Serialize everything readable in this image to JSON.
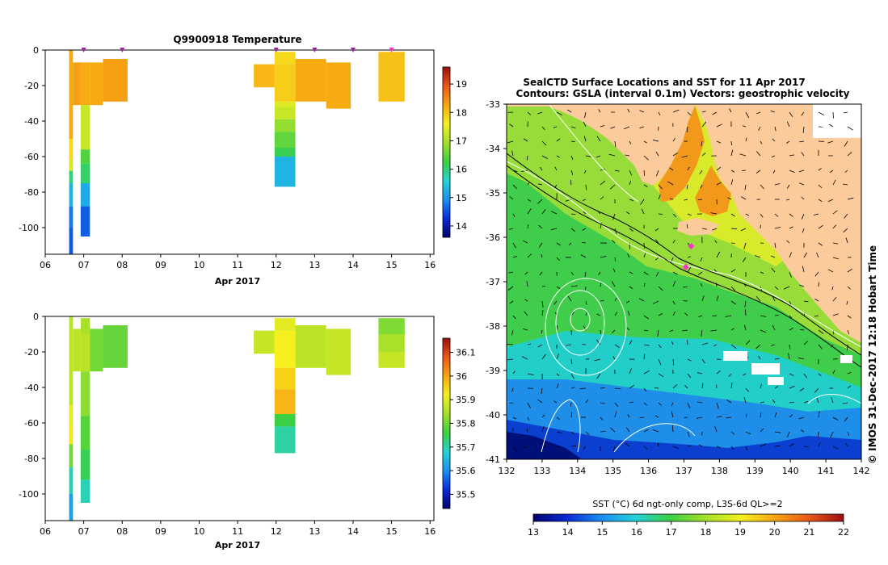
{
  "chart_data": [
    {
      "type": "heatmap",
      "title": "Q9900918  Temperature",
      "xlabel": "Apr 2017",
      "x_ticks": [
        "06",
        "07",
        "08",
        "09",
        "10",
        "11",
        "12",
        "13",
        "14",
        "15",
        "16"
      ],
      "xlim": [
        6,
        16.1
      ],
      "ylim": [
        -115,
        0
      ],
      "y_ticks": [
        0,
        -20,
        -40,
        -60,
        -80,
        -100
      ],
      "colorbar": {
        "min": 13.6,
        "max": 19.6,
        "ticks": [
          14,
          15,
          16,
          17,
          18,
          19
        ]
      },
      "profile_markers": [
        7,
        8,
        12,
        13,
        14,
        15
      ],
      "profiles": [
        {
          "x0": 6.62,
          "x1": 6.72,
          "cells": [
            [
              0,
              -50,
              18.2
            ],
            [
              -50,
              -62,
              17.8
            ],
            [
              -62,
              -68,
              17.3
            ],
            [
              -68,
              -75,
              16.0
            ],
            [
              -75,
              -88,
              15.3
            ],
            [
              -88,
              -100,
              14.8
            ],
            [
              -100,
              -115,
              14.6
            ]
          ]
        },
        {
          "x0": 6.72,
          "x1": 6.92,
          "cells": [
            [
              -7,
              -31,
              18.3
            ]
          ]
        },
        {
          "x0": 6.92,
          "x1": 7.16,
          "cells": [
            [
              -7,
              -31,
              18.2
            ],
            [
              -31,
              -56,
              17.2
            ],
            [
              -56,
              -64,
              16.4
            ],
            [
              -64,
              -75,
              16.1
            ],
            [
              -75,
              -88,
              15.2
            ],
            [
              -88,
              -105,
              14.6
            ]
          ]
        },
        {
          "x0": 7.16,
          "x1": 7.5,
          "cells": [
            [
              -7,
              -31,
              18.2
            ]
          ]
        },
        {
          "x0": 7.5,
          "x1": 8.14,
          "cells": [
            [
              -5,
              -29,
              18.3
            ]
          ]
        },
        {
          "x0": 11.42,
          "x1": 11.96,
          "cells": [
            [
              -8,
              -21,
              18.1
            ]
          ]
        },
        {
          "x0": 11.96,
          "x1": 12.5,
          "cells": [
            [
              -1,
              -8,
              17.8
            ],
            [
              -8,
              -29,
              17.9
            ],
            [
              -29,
              -32,
              17.4
            ],
            [
              -32,
              -39,
              17.2
            ],
            [
              -39,
              -46,
              16.8
            ],
            [
              -46,
              -55,
              16.5
            ],
            [
              -55,
              -60,
              16.2
            ],
            [
              -60,
              -77,
              15.3
            ]
          ]
        },
        {
          "x0": 12.5,
          "x1": 13.3,
          "cells": [
            [
              -5,
              -29,
              18.2
            ]
          ]
        },
        {
          "x0": 13.3,
          "x1": 13.94,
          "cells": [
            [
              -7,
              -33,
              18.2
            ]
          ]
        },
        {
          "x0": 14.66,
          "x1": 15.34,
          "cells": [
            [
              -1,
              -29,
              18.0
            ]
          ]
        }
      ]
    },
    {
      "type": "heatmap",
      "xlabel": "Apr 2017",
      "x_ticks": [
        "06",
        "07",
        "08",
        "09",
        "10",
        "11",
        "12",
        "13",
        "14",
        "15",
        "16"
      ],
      "xlim": [
        6,
        16.1
      ],
      "ylim": [
        -115,
        0
      ],
      "y_ticks": [
        0,
        -20,
        -40,
        -60,
        -80,
        -100
      ],
      "colorbar": {
        "min": 35.44,
        "max": 36.16,
        "ticks": [
          35.5,
          35.6,
          35.7,
          35.8,
          35.9,
          36,
          36.1
        ]
      },
      "profiles": [
        {
          "x0": 6.62,
          "x1": 6.72,
          "cells": [
            [
              0,
              -50,
              35.86
            ],
            [
              -50,
              -62,
              35.9
            ],
            [
              -62,
              -72,
              35.93
            ],
            [
              -72,
              -85,
              35.8
            ],
            [
              -85,
              -100,
              35.7
            ],
            [
              -100,
              -115,
              35.62
            ]
          ]
        },
        {
          "x0": 6.72,
          "x1": 6.92,
          "cells": [
            [
              -7,
              -31,
              35.86
            ]
          ]
        },
        {
          "x0": 6.92,
          "x1": 7.16,
          "cells": [
            [
              -1,
              -10,
              35.84
            ],
            [
              -10,
              -31,
              35.86
            ],
            [
              -31,
              -56,
              35.82
            ],
            [
              -56,
              -75,
              35.78
            ],
            [
              -75,
              -92,
              35.75
            ],
            [
              -92,
              -105,
              35.7
            ]
          ]
        },
        {
          "x0": 7.16,
          "x1": 7.5,
          "cells": [
            [
              -7,
              -31,
              35.8
            ]
          ]
        },
        {
          "x0": 7.5,
          "x1": 8.14,
          "cells": [
            [
              -5,
              -29,
              35.79
            ]
          ]
        },
        {
          "x0": 11.42,
          "x1": 11.96,
          "cells": [
            [
              -8,
              -21,
              35.87
            ]
          ]
        },
        {
          "x0": 11.96,
          "x1": 12.5,
          "cells": [
            [
              -1,
              -8,
              35.9
            ],
            [
              -8,
              -29,
              35.92
            ],
            [
              -29,
              -41,
              35.95
            ],
            [
              -41,
              -55,
              35.98
            ],
            [
              -55,
              -62,
              35.76
            ],
            [
              -62,
              -77,
              35.71
            ]
          ]
        },
        {
          "x0": 12.5,
          "x1": 13.3,
          "cells": [
            [
              -5,
              -29,
              35.86
            ]
          ]
        },
        {
          "x0": 13.3,
          "x1": 13.94,
          "cells": [
            [
              -7,
              -33,
              35.87
            ]
          ]
        },
        {
          "x0": 14.66,
          "x1": 15.34,
          "cells": [
            [
              -1,
              -10,
              35.81
            ],
            [
              -10,
              -20,
              35.84
            ],
            [
              -20,
              -29,
              35.87
            ]
          ]
        }
      ]
    },
    {
      "type": "heatmap",
      "title": "SealCTD Surface Locations and SST for 11 Apr 2017",
      "subtitle": "Contours: GSLA (interval 0.1m) Vectors: geostrophic velocity",
      "x_ticks": [
        "132",
        "133",
        "134",
        "135",
        "136",
        "137",
        "138",
        "139",
        "140",
        "141",
        "142"
      ],
      "y_ticks": [
        "-33",
        "-34",
        "-35",
        "-36",
        "-37",
        "-38",
        "-39",
        "-40",
        "-41"
      ],
      "xlim": [
        132,
        142
      ],
      "ylim": [
        -41,
        -33
      ],
      "colorbar_label": "SST (°C) 6d ngt-only comp, L3S-6d QL>=2",
      "colorbar": {
        "min": 13,
        "max": 22,
        "ticks": [
          13,
          14,
          15,
          16,
          17,
          18,
          19,
          20,
          21,
          22
        ]
      },
      "side_label": "© IMOS 31-Dec-2017 12:18 Hobart Time",
      "locations": [
        {
          "lon": 137.2,
          "lat": -36.2
        },
        {
          "lon": 137.05,
          "lat": -36.67
        }
      ]
    }
  ]
}
